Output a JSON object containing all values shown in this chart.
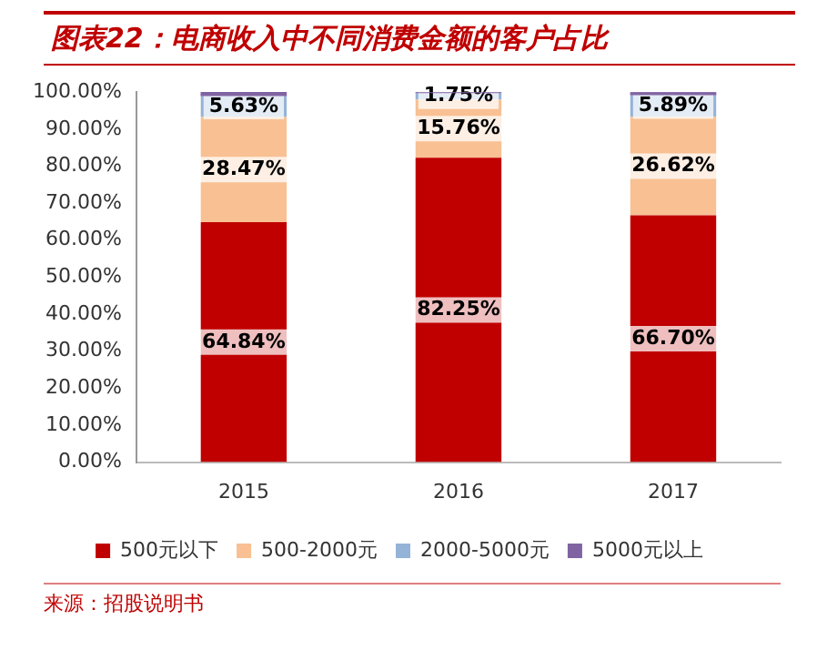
{
  "chart_data": {
    "type": "bar",
    "title": "图表22：电商收入中不同消费金额的客户占比",
    "stacked": true,
    "categories": [
      "2015",
      "2016",
      "2017"
    ],
    "series": [
      {
        "name": "500元以下",
        "color": "#c00000",
        "values": [
          64.84,
          82.25,
          66.7
        ],
        "value_labels": [
          "64.84%",
          "82.25%",
          "66.70%"
        ]
      },
      {
        "name": "500-2000元",
        "color": "#f8c093",
        "values": [
          28.47,
          15.76,
          26.62
        ],
        "value_labels": [
          "28.47%",
          "15.76%",
          "26.62%"
        ]
      },
      {
        "name": "2000-5000元",
        "color": "#95b3d7",
        "values": [
          5.63,
          1.75,
          5.89
        ],
        "value_labels": [
          "5.63%",
          "1.75%",
          "5.89%"
        ]
      },
      {
        "name": "5000元以上",
        "color": "#8064a2",
        "values": [
          1.1,
          0.2,
          0.8
        ]
      }
    ],
    "ylim": [
      0,
      100
    ],
    "yticks": [
      {
        "value": 0,
        "label": "0.00%"
      },
      {
        "value": 10,
        "label": "10.00%"
      },
      {
        "value": 20,
        "label": "20.00%"
      },
      {
        "value": 30,
        "label": "30.00%"
      },
      {
        "value": 40,
        "label": "40.00%"
      },
      {
        "value": 50,
        "label": "50.00%"
      },
      {
        "value": 60,
        "label": "60.00%"
      },
      {
        "value": 70,
        "label": "70.00%"
      },
      {
        "value": 80,
        "label": "80.00%"
      },
      {
        "value": 90,
        "label": "90.00%"
      },
      {
        "value": 100,
        "label": "100.00%"
      }
    ],
    "grid": false,
    "legend": "bottom",
    "annotations": [
      "来源：招股说明书"
    ]
  }
}
